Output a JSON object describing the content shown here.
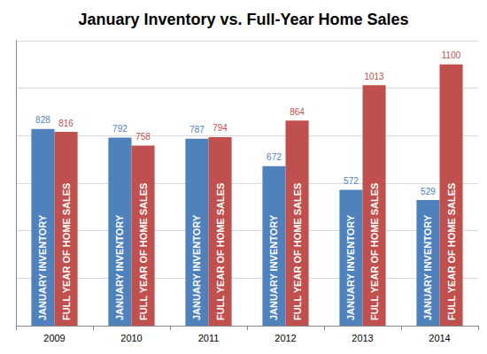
{
  "chart_data": {
    "type": "bar",
    "title": "January Inventory vs. Full-Year Home Sales",
    "categories": [
      "2009",
      "2010",
      "2011",
      "2012",
      "2013",
      "2014"
    ],
    "series": [
      {
        "name": "JANUARY INVENTORY",
        "color": "#4f81bd",
        "values": [
          828,
          792,
          787,
          672,
          572,
          529
        ]
      },
      {
        "name": "FULL YEAR OF HOME SALES",
        "color": "#c0504d",
        "values": [
          816,
          758,
          794,
          864,
          1013,
          1100
        ]
      }
    ],
    "ylim": [
      0,
      1200
    ],
    "yticks": [
      0,
      200,
      400,
      600,
      800,
      1000,
      1200
    ],
    "grid": true,
    "data_labels": true,
    "tick_labels": "x"
  }
}
